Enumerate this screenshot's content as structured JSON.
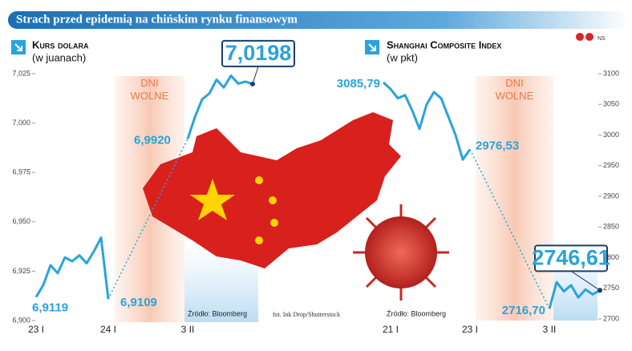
{
  "title": "Strach przed epidemią na chińskim rynku finansowym",
  "badge": "NS",
  "photo_credit": "fot. Ink Drop/Shutterstock",
  "chart_data": [
    {
      "type": "line",
      "title": "Kurs dolara",
      "subtitle": "(w juanach)",
      "color": "#29a3dc",
      "band_label": "DNI WOLNE",
      "source": "Źródło: Bloomberg",
      "categories": [
        "23 I",
        null,
        null,
        null,
        null,
        null,
        null,
        null,
        null,
        null,
        "24 I",
        null,
        null,
        null,
        null,
        null,
        null,
        null,
        null,
        null,
        null,
        "3 II",
        null,
        null,
        null,
        null,
        null,
        null,
        null,
        null,
        null
      ],
      "values": [
        6.9119,
        6.918,
        6.928,
        6.924,
        6.932,
        6.93,
        6.933,
        6.929,
        6.935,
        6.942,
        6.9109,
        null,
        null,
        null,
        null,
        null,
        null,
        null,
        null,
        null,
        null,
        6.992,
        7.003,
        7.012,
        7.015,
        7.022,
        7.018,
        7.024,
        7.02,
        7.021,
        7.0198
      ],
      "value_labels": [
        "6,9119",
        null,
        null,
        null,
        null,
        null,
        null,
        null,
        null,
        null,
        "6,9109",
        null,
        null,
        null,
        null,
        null,
        null,
        null,
        null,
        null,
        null,
        "6,9920",
        null,
        null,
        null,
        null,
        null,
        null,
        null,
        null,
        "7,0198"
      ],
      "ylim": [
        6.9,
        7.025
      ],
      "yticks": [
        {
          "value": 6.9,
          "label": "6,900"
        },
        {
          "value": 6.925,
          "label": "6,925"
        },
        {
          "value": 6.95,
          "label": "6,950"
        },
        {
          "value": 6.975,
          "label": "6,975"
        },
        {
          "value": 7.0,
          "label": "7,000"
        },
        {
          "value": 7.025,
          "label": "7,025"
        }
      ]
    },
    {
      "type": "line",
      "title": "Shanghai Composite Index",
      "subtitle": "(w pkt)",
      "color": "#29a3dc",
      "band_label": "DNI WOLNE",
      "source": "Źródło: Bloomberg",
      "categories": [
        null,
        "21 I",
        null,
        null,
        null,
        null,
        null,
        null,
        null,
        null,
        null,
        null,
        "23 I",
        null,
        null,
        null,
        null,
        null,
        null,
        null,
        null,
        null,
        null,
        "3 II",
        null,
        null,
        null,
        null,
        null,
        null,
        null
      ],
      "values": [
        3085.79,
        3075,
        3060,
        3065,
        3040,
        3010,
        3050,
        3070,
        3060,
        3030,
        3000,
        2960,
        2976.53,
        null,
        null,
        null,
        null,
        null,
        null,
        null,
        null,
        null,
        null,
        2716.7,
        2760,
        2745,
        2755,
        2735,
        2748,
        2740,
        2746.61
      ],
      "value_labels": [
        "3085,79",
        null,
        null,
        null,
        null,
        null,
        null,
        null,
        null,
        null,
        null,
        null,
        "2976,53",
        null,
        null,
        null,
        null,
        null,
        null,
        null,
        null,
        null,
        null,
        "2716,70",
        null,
        null,
        null,
        null,
        null,
        null,
        "2746,61"
      ],
      "ylim": [
        2700,
        3100
      ],
      "yticks": [
        2700,
        2750,
        2800,
        2850,
        2900,
        2950,
        3000,
        3050,
        3100
      ]
    }
  ]
}
